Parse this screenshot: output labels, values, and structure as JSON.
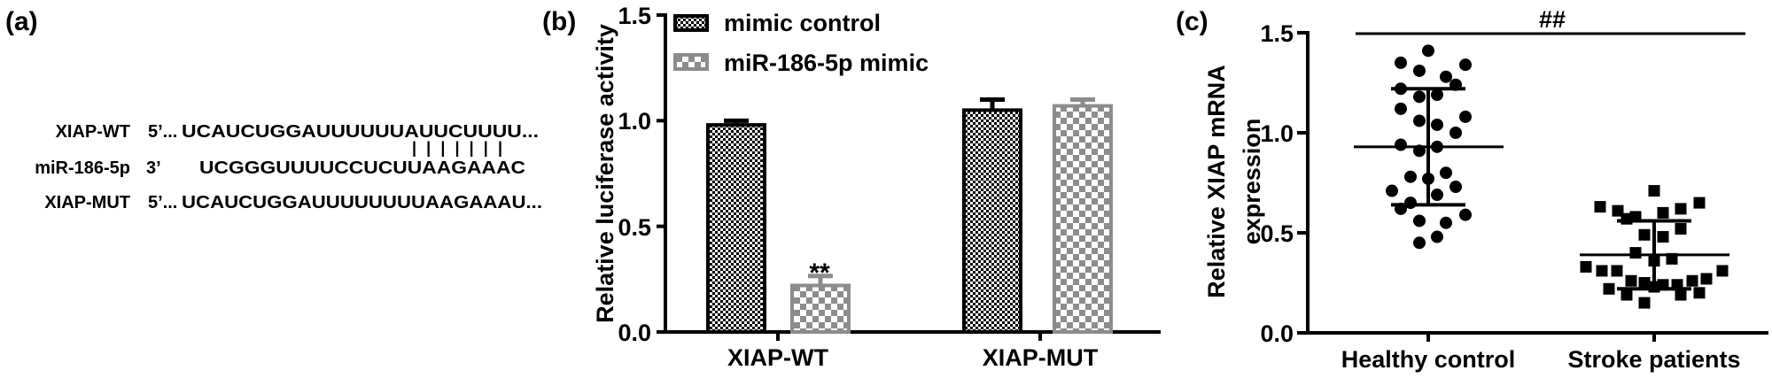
{
  "panel_a": {
    "label": "(a)",
    "rows": [
      {
        "name": "XIAP-WT",
        "end": "5’...",
        "seq": "UCAUCUGGAUUUUUUAUUCUUUU..."
      },
      {
        "name": "miR-186-5p",
        "end": "3’",
        "seq": "UCGGGUUUUCCUCUUAAGAAAC"
      },
      {
        "name": "XIAP-MUT",
        "end": "5’...",
        "seq": "UCAUCUGGAUUUUUUUUAAGAAAU..."
      }
    ],
    "pairing": "| | | | | | |"
  },
  "chart_data": [
    {
      "panel_label": "(b)",
      "type": "bar",
      "ylabel": "Relative luciferase activity",
      "ylim": [
        0,
        1.5
      ],
      "yticks": [
        "0.0",
        "0.5",
        "1.0",
        "1.5"
      ],
      "categories": [
        "XIAP-WT",
        "XIAP-MUT"
      ],
      "legend_position": "top-left",
      "series": [
        {
          "name": "mimic control",
          "values": [
            0.98,
            1.05
          ],
          "errors": [
            0.02,
            0.05
          ],
          "color": "#000000"
        },
        {
          "name": "miR-186-5p mimic",
          "values": [
            0.22,
            1.07
          ],
          "errors": [
            0.045,
            0.03
          ],
          "color": "#8c8c8c"
        }
      ],
      "annotations": [
        {
          "category": "XIAP-WT",
          "series": "miR-186-5p mimic",
          "text": "**"
        }
      ]
    },
    {
      "panel_label": "(c)",
      "type": "scatter",
      "ylabel": "Relative XIAP mRNA expression",
      "ylabel_lines": [
        "Relative XIAP mRNA",
        "expression"
      ],
      "ylim": [
        0,
        1.5
      ],
      "yticks": [
        "0.0",
        "0.5",
        "1.0",
        "1.5"
      ],
      "categories": [
        "Healthy control",
        "Stroke patients"
      ],
      "significance": "##",
      "series": [
        {
          "category": "Healthy control",
          "marker": "circle",
          "mean": 0.93,
          "sd": 0.29,
          "values": [
            1.41,
            1.35,
            1.34,
            1.31,
            1.28,
            1.24,
            1.22,
            1.18,
            1.19,
            1.12,
            1.08,
            1.06,
            1.04,
            1.0,
            0.94,
            0.93,
            0.91,
            0.8,
            0.78,
            0.77,
            0.73,
            0.71,
            0.69,
            0.65,
            0.62,
            0.59,
            0.56,
            0.55,
            0.48,
            0.45
          ]
        },
        {
          "category": "Stroke patients",
          "marker": "square",
          "mean": 0.39,
          "sd": 0.17,
          "values": [
            0.71,
            0.65,
            0.63,
            0.62,
            0.61,
            0.6,
            0.58,
            0.57,
            0.52,
            0.49,
            0.48,
            0.4,
            0.37,
            0.36,
            0.33,
            0.31,
            0.31,
            0.31,
            0.27,
            0.26,
            0.26,
            0.25,
            0.24,
            0.24,
            0.23,
            0.22,
            0.2,
            0.19,
            0.19,
            0.15
          ]
        }
      ]
    }
  ]
}
